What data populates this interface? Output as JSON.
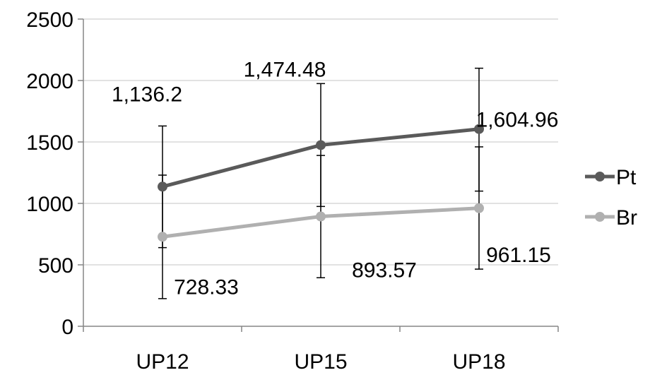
{
  "chart_data": {
    "type": "line",
    "categories": [
      "UP12",
      "UP15",
      "UP18"
    ],
    "ylim": [
      0,
      2500
    ],
    "yticks": [
      0,
      500,
      1000,
      1500,
      2000,
      2500
    ],
    "grid": "horizontal",
    "legend": "right",
    "series": [
      {
        "name": "Pt",
        "color": "#5a5a5a",
        "values": [
          1136.2,
          1474.48,
          1604.96
        ],
        "labels": [
          "1,136.2",
          "1,474.48",
          "1,604.96"
        ],
        "error": [
          {
            "low": 640,
            "high": 1630
          },
          {
            "low": 975,
            "high": 1975
          },
          {
            "low": 1100,
            "high": 2100
          }
        ]
      },
      {
        "name": "Br",
        "color": "#b0b0b0",
        "values": [
          728.33,
          893.57,
          961.15
        ],
        "labels": [
          "728.33",
          "893.57",
          "961.15"
        ],
        "error": [
          {
            "low": 225,
            "high": 1230
          },
          {
            "low": 395,
            "high": 1390
          },
          {
            "low": 465,
            "high": 1460
          }
        ]
      }
    ]
  }
}
